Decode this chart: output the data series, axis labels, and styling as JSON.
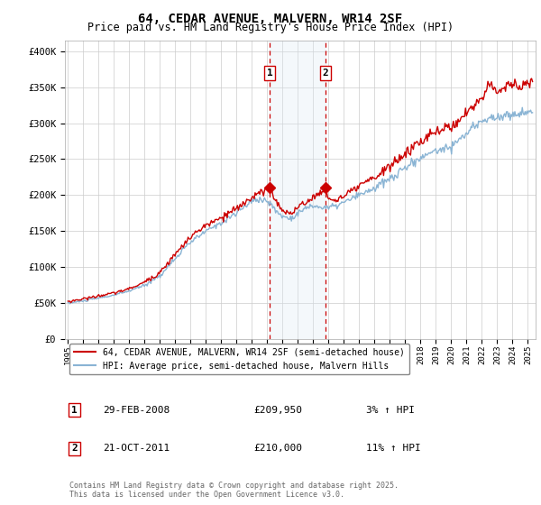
{
  "title": "64, CEDAR AVENUE, MALVERN, WR14 2SF",
  "subtitle": "Price paid vs. HM Land Registry's House Price Index (HPI)",
  "title_fontsize": 10,
  "subtitle_fontsize": 8.5,
  "ylabel_ticks": [
    "£0",
    "£50K",
    "£100K",
    "£150K",
    "£200K",
    "£250K",
    "£300K",
    "£350K",
    "£400K"
  ],
  "ytick_values": [
    0,
    50000,
    100000,
    150000,
    200000,
    250000,
    300000,
    350000,
    400000
  ],
  "ylim": [
    0,
    415000
  ],
  "xlim_start": 1994.8,
  "xlim_end": 2025.5,
  "purchase1_date": 2008.16,
  "purchase1_price": 209950,
  "purchase2_date": 2011.8,
  "purchase2_price": 210000,
  "line1_color": "#cc0000",
  "line2_color": "#8ab4d4",
  "line1_label": "64, CEDAR AVENUE, MALVERN, WR14 2SF (semi-detached house)",
  "line2_label": "HPI: Average price, semi-detached house, Malvern Hills",
  "shade_color": "#dce9f5",
  "vline_color": "#cc0000",
  "background_color": "#ffffff",
  "grid_color": "#cccccc",
  "footer_text": "Contains HM Land Registry data © Crown copyright and database right 2025.\nThis data is licensed under the Open Government Licence v3.0.",
  "marker_color": "#cc0000",
  "box_edge_color": "#cc0000",
  "purchase1_date_str": "29-FEB-2008",
  "purchase1_price_str": "£209,950",
  "purchase1_hpi_str": "3% ↑ HPI",
  "purchase2_date_str": "21-OCT-2011",
  "purchase2_price_str": "£210,000",
  "purchase2_hpi_str": "11% ↑ HPI"
}
